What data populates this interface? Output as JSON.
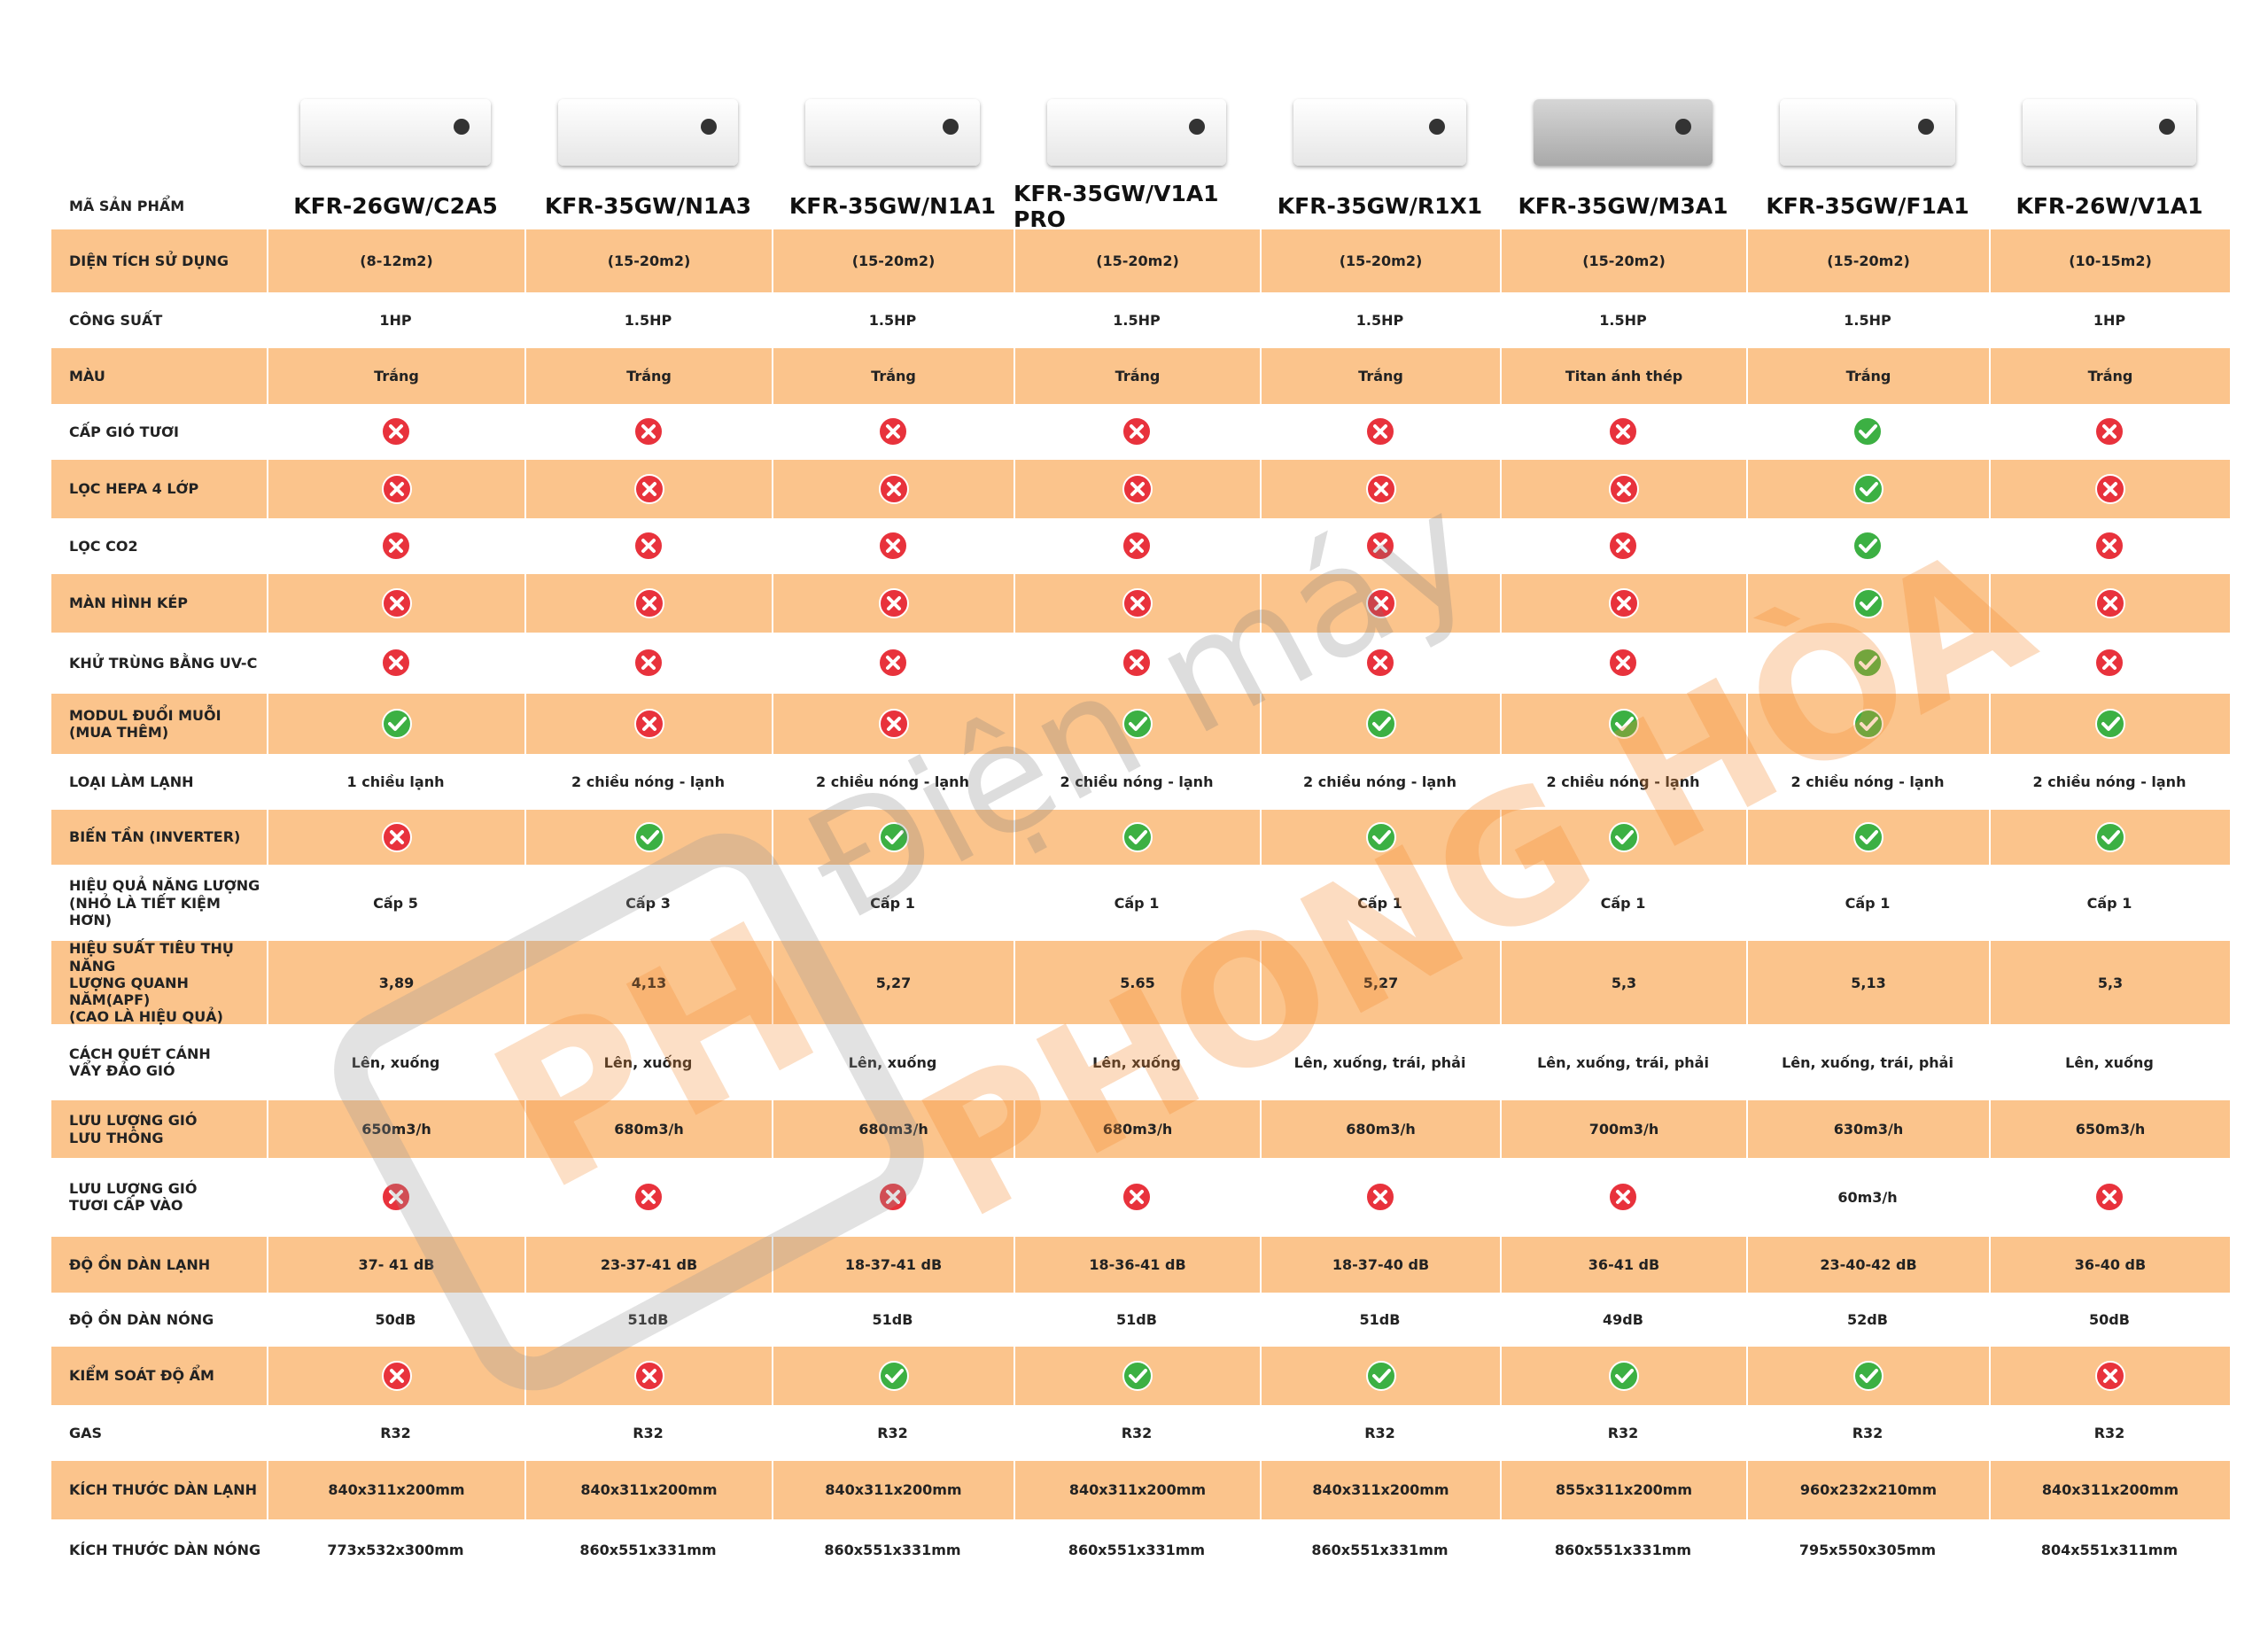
{
  "header": {
    "label": "MÃ SẢN PHẨM",
    "models": [
      "KFR-26GW/C2A5",
      "KFR-35GW/N1A3",
      "KFR-35GW/N1A1",
      "KFR-35GW/V1A1 PRO",
      "KFR-35GW/R1X1",
      "KFR-35GW/M3A1",
      "KFR-35GW/F1A1",
      "KFR-26W/V1A1"
    ]
  },
  "table": {
    "rows": [
      {
        "label": "DIỆN TÍCH SỬ DỤNG",
        "cells": [
          "(8-12m2)",
          "(15-20m2)",
          "(15-20m2)",
          "(15-20m2)",
          "(15-20m2)",
          "(15-20m2)",
          "(15-20m2)",
          "(10-15m2)"
        ]
      },
      {
        "label": "CÔNG SUẤT",
        "cells": [
          "1HP",
          "1.5HP",
          "1.5HP",
          "1.5HP",
          "1.5HP",
          "1.5HP",
          "1.5HP",
          "1HP"
        ]
      },
      {
        "label": "MÀU",
        "cells": [
          "Trắng",
          "Trắng",
          "Trắng",
          "Trắng",
          "Trắng",
          "Titan ánh thép",
          "Trắng",
          "Trắng"
        ]
      },
      {
        "label": "CẤP GIÓ TƯƠI",
        "cells": [
          false,
          false,
          false,
          false,
          false,
          false,
          true,
          false
        ]
      },
      {
        "label": "LỌC HEPA 4 LỚP",
        "cells": [
          false,
          false,
          false,
          false,
          false,
          false,
          true,
          false
        ]
      },
      {
        "label": "LỌC CO2",
        "cells": [
          false,
          false,
          false,
          false,
          false,
          false,
          true,
          false
        ]
      },
      {
        "label": "MÀN HÌNH KÉP",
        "cells": [
          false,
          false,
          false,
          false,
          false,
          false,
          true,
          false
        ]
      },
      {
        "label": "KHỬ TRÙNG BẰNG UV-C",
        "cells": [
          false,
          false,
          false,
          false,
          false,
          false,
          true,
          false
        ]
      },
      {
        "label": "MODUL ĐUỔI MUỖI\n(MUA THÊM)",
        "cells": [
          true,
          false,
          false,
          true,
          true,
          true,
          true,
          true
        ]
      },
      {
        "label": "LOẠI LÀM LẠNH",
        "cells": [
          "1 chiều lạnh",
          "2 chiều nóng - lạnh",
          "2 chiều nóng - lạnh",
          "2 chiều nóng - lạnh",
          "2 chiều nóng - lạnh",
          "2 chiều nóng - lạnh",
          "2 chiều nóng - lạnh",
          "2 chiều nóng - lạnh"
        ]
      },
      {
        "label": "BIẾN TẦN (INVERTER)",
        "cells": [
          false,
          true,
          true,
          true,
          true,
          true,
          true,
          true
        ]
      },
      {
        "label": "HIỆU QUẢ NĂNG LƯỢNG\n(NHỎ LÀ TIẾT KIỆM HƠN)",
        "cells": [
          "Cấp 5",
          "Cấp 3",
          "Cấp 1",
          "Cấp 1",
          "Cấp 1",
          "Cấp 1",
          "Cấp 1",
          "Cấp 1"
        ]
      },
      {
        "label": "HIỆU SUẤT TIÊU THỤ NĂNG\nLƯỢNG QUANH NĂM(APF)\n(CAO LÀ HIỆU QUẢ)",
        "cells": [
          "3,89",
          "4,13",
          "5,27",
          "5.65",
          "5,27",
          "5,3",
          "5,13",
          "5,3"
        ]
      },
      {
        "label": "CÁCH QUÉT CÁNH\nVẨY ĐẢO GIÓ",
        "cells": [
          "Lên, xuống",
          "Lên, xuống",
          "Lên, xuống",
          "Lên, xuống",
          "Lên, xuống, trái, phải",
          "Lên, xuống, trái, phải",
          "Lên, xuống, trái, phải",
          "Lên, xuống"
        ]
      },
      {
        "label": "LƯU LƯỢNG GIÓ\nLƯU THÔNG",
        "cells": [
          "650m3/h",
          "680m3/h",
          "680m3/h",
          "680m3/h",
          "680m3/h",
          "700m3/h",
          "630m3/h",
          "650m3/h"
        ]
      },
      {
        "label": "LƯU LƯỢNG GIÓ\nTƯƠI CẤP VÀO",
        "cells": [
          false,
          false,
          false,
          false,
          false,
          false,
          "60m3/h",
          false
        ]
      },
      {
        "label": "ĐỘ ỒN DÀN LẠNH",
        "cells": [
          "37- 41 dB",
          "23-37-41 dB",
          "18-37-41 dB",
          "18-36-41  dB",
          "18-37-40 dB",
          "36-41 dB",
          "23-40-42 dB",
          "36-40 dB"
        ]
      },
      {
        "label": "ĐỘ ỒN DÀN NÓNG",
        "cells": [
          "50dB",
          "51dB",
          "51dB",
          "51dB",
          "51dB",
          "49dB",
          "52dB",
          "50dB"
        ]
      },
      {
        "label": "KIỂM SOÁT ĐỘ ẨM",
        "cells": [
          false,
          false,
          true,
          true,
          true,
          true,
          true,
          false
        ]
      },
      {
        "label": "GAS",
        "cells": [
          "R32",
          "R32",
          "R32",
          "R32",
          "R32",
          "R32",
          "R32",
          "R32"
        ]
      },
      {
        "label": "KÍCH THƯỚC DÀN LẠNH",
        "cells": [
          "840x311x200mm",
          "840x311x200mm",
          "840x311x200mm",
          "840x311x200mm",
          "840x311x200mm",
          "855x311x200mm",
          "960x232x210mm",
          "840x311x200mm"
        ]
      },
      {
        "label": "KÍCH THƯỚC DÀN NÓNG",
        "cells": [
          "773x532x300mm",
          "860x551x331mm",
          "860x551x331mm",
          "860x551x331mm",
          "860x551x331mm",
          "860x551x331mm",
          "795x550x305mm",
          "804x551x311mm"
        ]
      }
    ]
  },
  "watermark": {
    "logo": "PH",
    "brand_top": "Điện máy",
    "brand_main": "PHONG HÒA"
  }
}
